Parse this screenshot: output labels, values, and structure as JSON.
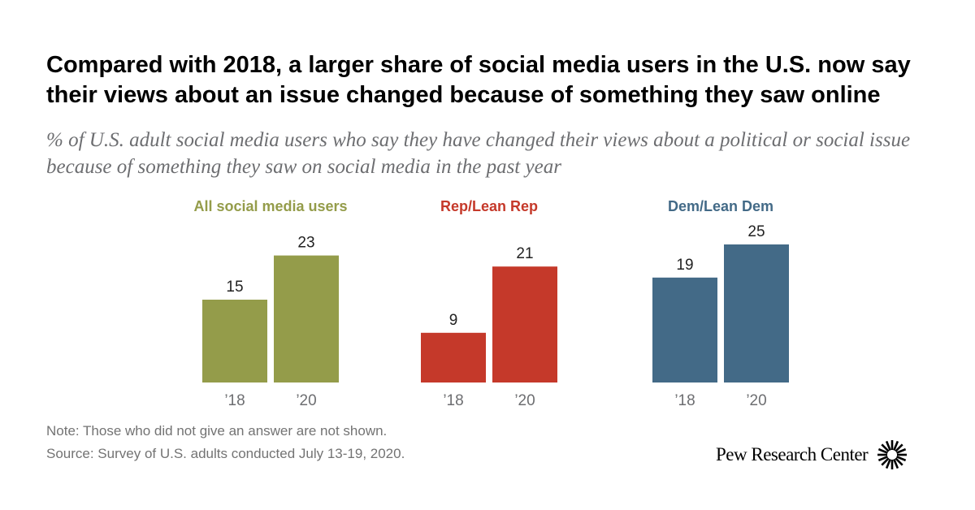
{
  "title": "Compared with 2018, a larger share of social media users in the U.S. now say their views about an issue changed because of something they saw online",
  "subtitle": "% of U.S. adult social media users who say they have changed their views about a political or social issue because of something they saw on social media in the past year",
  "note": "Note: Those who did not give an answer are not shown.",
  "source": "Source: Survey of U.S. adults conducted July 13-19, 2020.",
  "logo_text": "Pew Research Center",
  "chart_data": {
    "type": "bar",
    "ylim": [
      0,
      25
    ],
    "grid": false,
    "groups": [
      {
        "name": "All social media users",
        "color": "#949c4a",
        "categories": [
          "’18",
          "’20"
        ],
        "values": [
          15,
          23
        ]
      },
      {
        "name": "Rep/Lean Rep",
        "color": "#c5392a",
        "categories": [
          "’18",
          "’20"
        ],
        "values": [
          9,
          21
        ]
      },
      {
        "name": "Dem/Lean Dem",
        "color": "#436a87",
        "categories": [
          "’18",
          "’20"
        ],
        "values": [
          19,
          25
        ]
      }
    ]
  }
}
